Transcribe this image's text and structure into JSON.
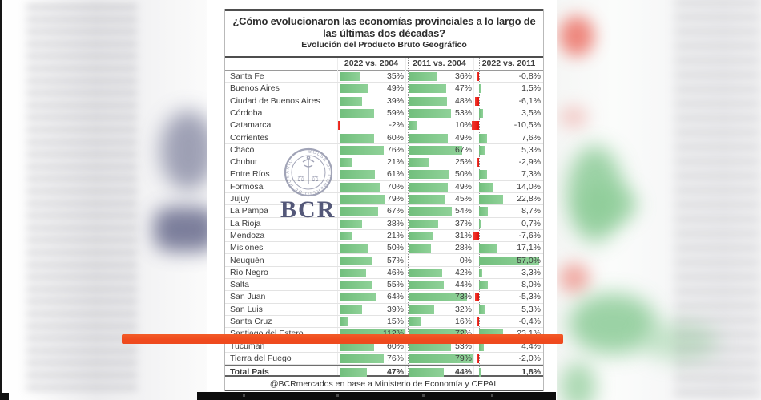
{
  "chart_data": {
    "type": "table",
    "title_line1": "¿Cómo evolucionaron las economías provinciales a lo largo de",
    "title_line2": "las últimas dos décadas?",
    "subtitle": "Evolución del Producto Bruto Geográfico",
    "columns": [
      "2022 vs. 2004",
      "2011 vs. 2004",
      "2022 vs. 2011"
    ],
    "value_format": "percent, comma decimal (es-AR)",
    "bar_axis_ranges": {
      "col1": [
        -2,
        112
      ],
      "col2": [
        0,
        79
      ],
      "col3": [
        -10.5,
        57
      ]
    },
    "rows": [
      {
        "name": "Santa Fe",
        "values": [
          35,
          36,
          -0.8
        ],
        "labels": [
          "35%",
          "36%",
          "-0,8%"
        ]
      },
      {
        "name": "Buenos Aires",
        "values": [
          49,
          47,
          1.5
        ],
        "labels": [
          "49%",
          "47%",
          "1,5%"
        ]
      },
      {
        "name": "Ciudad de Buenos Aires",
        "values": [
          39,
          48,
          -6.1
        ],
        "labels": [
          "39%",
          "48%",
          "-6,1%"
        ]
      },
      {
        "name": "Córdoba",
        "values": [
          59,
          53,
          3.5
        ],
        "labels": [
          "59%",
          "53%",
          "3,5%"
        ]
      },
      {
        "name": "Catamarca",
        "values": [
          -2,
          10,
          -10.5
        ],
        "labels": [
          "-2%",
          "10%",
          "-10,5%"
        ]
      },
      {
        "name": "Corrientes",
        "values": [
          60,
          49,
          7.6
        ],
        "labels": [
          "60%",
          "49%",
          "7,6%"
        ]
      },
      {
        "name": "Chaco",
        "values": [
          76,
          67,
          5.3
        ],
        "labels": [
          "76%",
          "67%",
          "5,3%"
        ]
      },
      {
        "name": "Chubut",
        "values": [
          21,
          25,
          -2.9
        ],
        "labels": [
          "21%",
          "25%",
          "-2,9%"
        ]
      },
      {
        "name": "Entre Ríos",
        "values": [
          61,
          50,
          7.3
        ],
        "labels": [
          "61%",
          "50%",
          "7,3%"
        ]
      },
      {
        "name": "Formosa",
        "values": [
          70,
          49,
          14.0
        ],
        "labels": [
          "70%",
          "49%",
          "14,0%"
        ]
      },
      {
        "name": "Jujuy",
        "values": [
          79,
          45,
          22.8
        ],
        "labels": [
          "79%",
          "45%",
          "22,8%"
        ]
      },
      {
        "name": "La Pampa",
        "values": [
          67,
          54,
          8.7
        ],
        "labels": [
          "67%",
          "54%",
          "8,7%"
        ]
      },
      {
        "name": "La Rioja",
        "values": [
          38,
          37,
          0.7
        ],
        "labels": [
          "38%",
          "37%",
          "0,7%"
        ]
      },
      {
        "name": "Mendoza",
        "values": [
          21,
          31,
          -7.6
        ],
        "labels": [
          "21%",
          "31%",
          "-7,6%"
        ]
      },
      {
        "name": "Misiones",
        "values": [
          50,
          28,
          17.1
        ],
        "labels": [
          "50%",
          "28%",
          "17,1%"
        ]
      },
      {
        "name": "Neuquén",
        "values": [
          57,
          0,
          57.0
        ],
        "labels": [
          "57%",
          "0%",
          "57,0%"
        ]
      },
      {
        "name": "Río Negro",
        "values": [
          46,
          42,
          3.3
        ],
        "labels": [
          "46%",
          "42%",
          "3,3%"
        ]
      },
      {
        "name": "Salta",
        "values": [
          55,
          44,
          8.0
        ],
        "labels": [
          "55%",
          "44%",
          "8,0%"
        ]
      },
      {
        "name": "San Juan",
        "values": [
          64,
          73,
          -5.3
        ],
        "labels": [
          "64%",
          "73%",
          "-5,3%"
        ]
      },
      {
        "name": "San Luis",
        "values": [
          39,
          32,
          5.3
        ],
        "labels": [
          "39%",
          "32%",
          "5,3%"
        ]
      },
      {
        "name": "Santa Cruz",
        "values": [
          15,
          16,
          -0.4
        ],
        "labels": [
          "15%",
          "16%",
          "-0,4%"
        ]
      },
      {
        "name": "Santiago del Estero",
        "values": [
          112,
          72,
          23.1
        ],
        "labels": [
          "112%",
          "72%",
          "23,1%"
        ]
      },
      {
        "name": "Tucumán",
        "values": [
          60,
          53,
          4.4
        ],
        "labels": [
          "60%",
          "53%",
          "4,4%"
        ]
      },
      {
        "name": "Tierra del Fuego",
        "values": [
          76,
          79,
          -2.0
        ],
        "labels": [
          "76%",
          "79%",
          "-2,0%"
        ]
      }
    ],
    "total": {
      "name": "Total País",
      "values": [
        47,
        44,
        1.8
      ],
      "labels": [
        "47%",
        "44%",
        "1,8%"
      ],
      "total": true
    },
    "source": "@BCRmercados en base a Ministerio de Economía y CEPAL",
    "highlight": {
      "row": "Santiago del Estero",
      "style": "orange marker stripe",
      "color": "#f04a1d"
    },
    "colors": {
      "bar_positive": "#7cc485",
      "bar_negative": "#e9140c",
      "watermark_navy": "#3d4267",
      "bottom_bar": "#0d0d0d"
    },
    "legend_position": "none",
    "grid": "light row separators, dotted bar-axis verticals"
  },
  "watermark": {
    "text": "BCR",
    "seal_text": "BOLSA DE COMERCIO DE ROSARIO"
  }
}
